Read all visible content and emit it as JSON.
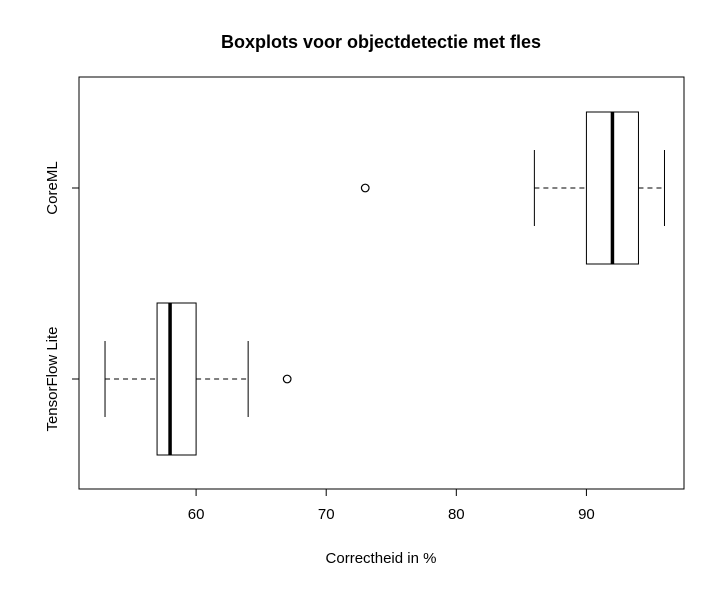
{
  "chart_data": {
    "type": "boxplot",
    "orientation": "horizontal",
    "title": "Boxplots voor objectdetectie met fles",
    "xlabel": "Correctheid in %",
    "ylabel": "",
    "xlim": [
      51,
      97.5
    ],
    "x_ticks": [
      60,
      70,
      80,
      90
    ],
    "x_tick_labels": [
      "60",
      "70",
      "80",
      "90"
    ],
    "grid": false,
    "legend": "none",
    "groups": [
      {
        "name": "TensorFlow Lite",
        "whisker_low": 53,
        "q1": 57,
        "median": 58,
        "q3": 60,
        "whisker_high": 64,
        "outliers": [
          67
        ]
      },
      {
        "name": "CoreML",
        "whisker_low": 86,
        "q1": 90,
        "median": 92,
        "q3": 94,
        "whisker_high": 96,
        "outliers": [
          73
        ]
      }
    ]
  }
}
